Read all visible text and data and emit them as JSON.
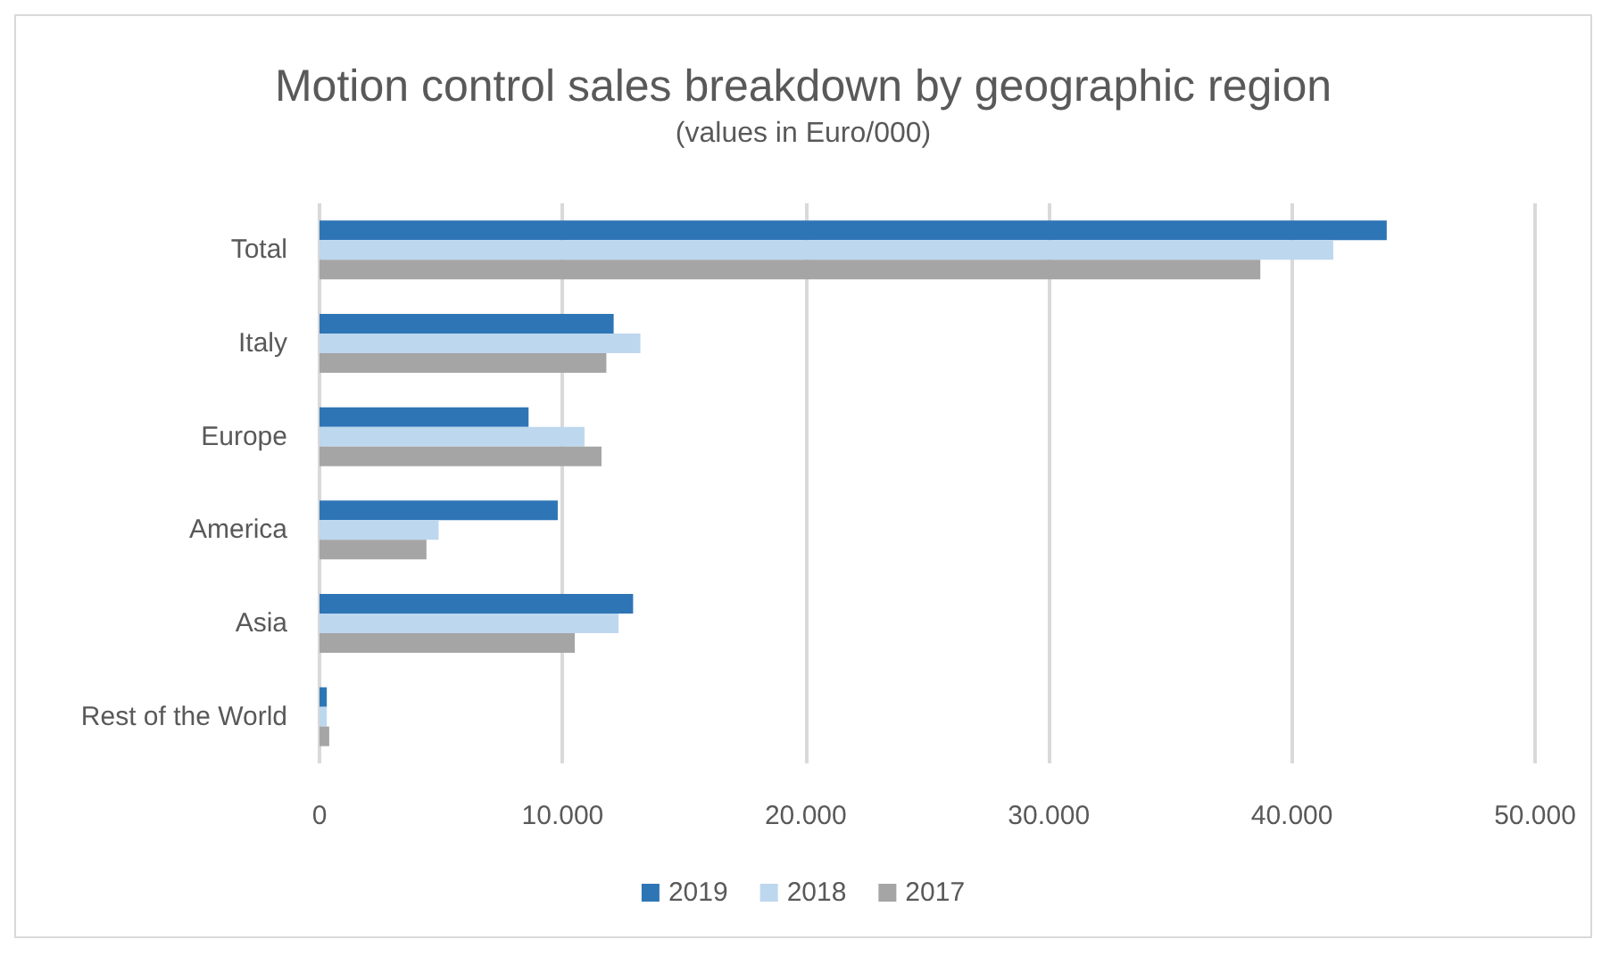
{
  "chart_data": {
    "type": "bar",
    "orientation": "horizontal",
    "title": "Motion control sales breakdown by geographic region",
    "subtitle": "(values in Euro/000)",
    "categories": [
      "Total",
      "Italy",
      "Europe",
      "America",
      "Asia",
      "Rest of the World"
    ],
    "series": [
      {
        "name": "2019",
        "color": "#2e75b6",
        "values": [
          43900,
          12100,
          8600,
          9800,
          12900,
          300
        ]
      },
      {
        "name": "2018",
        "color": "#bdd7ee",
        "values": [
          41700,
          13200,
          10900,
          4900,
          12300,
          300
        ]
      },
      {
        "name": "2017",
        "color": "#a5a5a5",
        "values": [
          38700,
          11800,
          11600,
          4400,
          10500,
          400
        ]
      }
    ],
    "xlim": [
      0,
      50000
    ],
    "xticks": [
      {
        "value": 0,
        "label": "0"
      },
      {
        "value": 10000,
        "label": "10.000"
      },
      {
        "value": 20000,
        "label": "20.000"
      },
      {
        "value": 30000,
        "label": "30.000"
      },
      {
        "value": 40000,
        "label": "40.000"
      },
      {
        "value": 50000,
        "label": "50.000"
      }
    ],
    "grid": "x",
    "legend": "bottom"
  }
}
